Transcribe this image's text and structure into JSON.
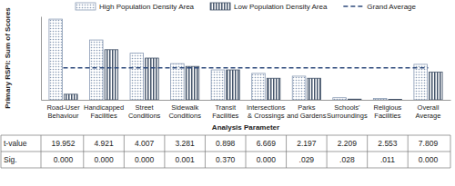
{
  "chart_data": {
    "type": "bar",
    "y_label": "Primary RSPI: Sum of Scores",
    "x_label": "Analysis Parameter",
    "categories": [
      "Road-User Behaviour",
      "Handicapped Facilities",
      "Street Conditions",
      "Sidewalk Conditions",
      "Transit Facilities",
      "Intersections & Crossings",
      "Parks and Gardens",
      "Schools' Surroundings",
      "Religious Facilities",
      "Overall Average"
    ],
    "series": [
      {
        "name": "High Population Density Area",
        "type": "bar",
        "color": "#8a9bb5",
        "values": [
          58,
          43,
          33.5,
          26,
          21.5,
          19,
          17,
          1.5,
          1,
          25.5
        ]
      },
      {
        "name": "Low Population Density Area",
        "type": "bar",
        "color": "#44546a",
        "values": [
          4,
          36,
          30,
          24,
          21.5,
          15.5,
          15.5,
          0.5,
          0.3,
          20
        ]
      },
      {
        "name": "Grand Average",
        "type": "line",
        "color": "#2f4b7c",
        "line_style": "dashed",
        "values": [
          23,
          23,
          23,
          23,
          23,
          23,
          23,
          23,
          23,
          23
        ]
      }
    ],
    "ylim": [
      0,
      60
    ],
    "tick_labels": "x",
    "legend": "top",
    "grid": false,
    "table": {
      "row_labels": [
        "t-value",
        "Sig."
      ],
      "rows": [
        [
          "19.952",
          "4.921",
          "4.007",
          "3.281",
          "0.898",
          "6.669",
          "2.197",
          "2.209",
          "2.553",
          "7.809"
        ],
        [
          "0.000",
          "0.000",
          "0.000",
          "0.001",
          "0.370",
          "0.000",
          ".029",
          ".028",
          ".011",
          "0.000"
        ]
      ]
    }
  }
}
